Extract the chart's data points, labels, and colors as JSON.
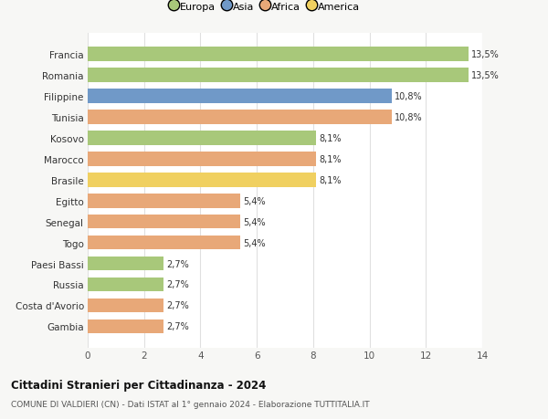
{
  "categories": [
    "Francia",
    "Romania",
    "Filippine",
    "Tunisia",
    "Kosovo",
    "Marocco",
    "Brasile",
    "Egitto",
    "Senegal",
    "Togo",
    "Paesi Bassi",
    "Russia",
    "Costa d'Avorio",
    "Gambia"
  ],
  "values": [
    13.5,
    13.5,
    10.8,
    10.8,
    8.1,
    8.1,
    8.1,
    5.4,
    5.4,
    5.4,
    2.7,
    2.7,
    2.7,
    2.7
  ],
  "labels": [
    "13,5%",
    "13,5%",
    "10,8%",
    "10,8%",
    "8,1%",
    "8,1%",
    "8,1%",
    "5,4%",
    "5,4%",
    "5,4%",
    "2,7%",
    "2,7%",
    "2,7%",
    "2,7%"
  ],
  "continent": [
    "Europa",
    "Europa",
    "Asia",
    "Africa",
    "Europa",
    "Africa",
    "America",
    "Africa",
    "Africa",
    "Africa",
    "Europa",
    "Europa",
    "Africa",
    "Africa"
  ],
  "colors": {
    "Europa": "#a8c87a",
    "Asia": "#7099c8",
    "Africa": "#e8a878",
    "America": "#f0d060"
  },
  "legend_order": [
    "Europa",
    "Asia",
    "Africa",
    "America"
  ],
  "xlim": [
    0,
    14
  ],
  "xticks": [
    0,
    2,
    4,
    6,
    8,
    10,
    12,
    14
  ],
  "title": "Cittadini Stranieri per Cittadinanza - 2024",
  "subtitle": "COMUNE DI VALDIERI (CN) - Dati ISTAT al 1° gennaio 2024 - Elaborazione TUTTITALIA.IT",
  "background_color": "#f7f7f5",
  "bar_background": "#ffffff",
  "grid_color": "#e0e0e0"
}
